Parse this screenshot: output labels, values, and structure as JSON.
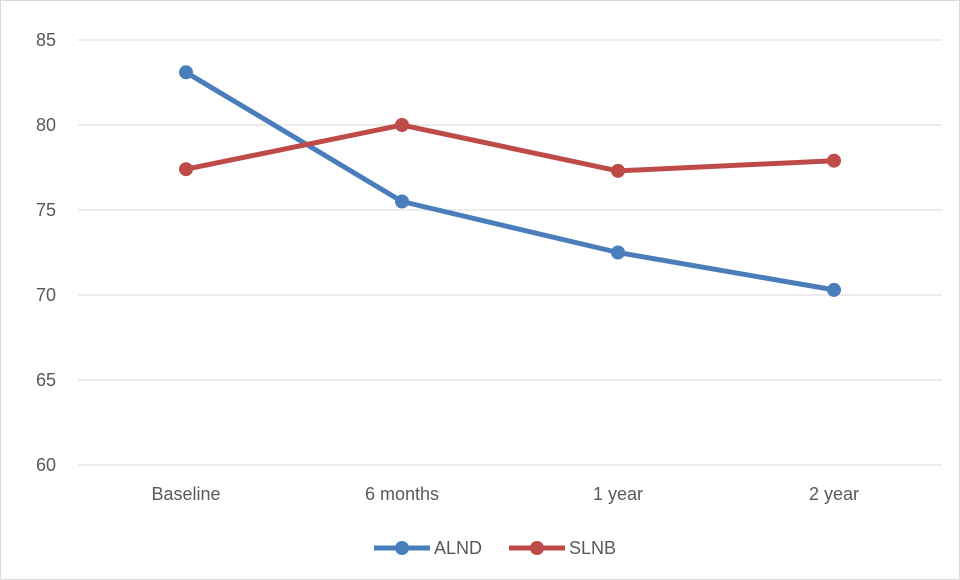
{
  "chart_data": {
    "type": "line",
    "title": "",
    "xlabel": "",
    "ylabel": "",
    "categories": [
      "Baseline",
      "6 months",
      "1 year",
      "2 year"
    ],
    "ylim": [
      60,
      85
    ],
    "yticks": [
      60,
      65,
      70,
      75,
      80,
      85
    ],
    "grid": true,
    "legend_position": "bottom",
    "series": [
      {
        "name": "ALND",
        "color": "#4a7ebb",
        "values": [
          83.1,
          75.5,
          72.5,
          70.3
        ]
      },
      {
        "name": "SLNB",
        "color": "#be4b48",
        "values": [
          77.4,
          80.0,
          77.3,
          77.9
        ]
      }
    ]
  }
}
